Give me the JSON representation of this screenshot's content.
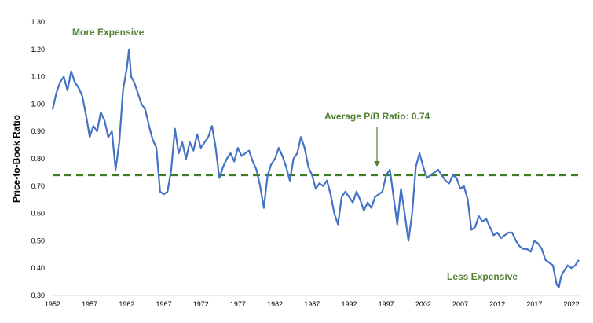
{
  "chart_data": {
    "type": "line",
    "title": "",
    "xlabel": "",
    "ylabel": "Price-to-Book Ratio",
    "xlim": [
      1952,
      2023
    ],
    "ylim": [
      0.3,
      1.3
    ],
    "grid": false,
    "legend": "none",
    "x_ticks": [
      "1952",
      "1957",
      "1962",
      "1967",
      "1972",
      "1977",
      "1982",
      "1987",
      "1992",
      "1997",
      "2002",
      "2007",
      "2012",
      "2017",
      "2022"
    ],
    "y_ticks": [
      "0.30",
      "0.40",
      "0.50",
      "0.60",
      "0.70",
      "0.80",
      "0.90",
      "1.00",
      "1.10",
      "1.20",
      "1.30"
    ],
    "series": [
      {
        "color": "#4472c4",
        "x": [
          1952.0,
          1952.5,
          1953.0,
          1953.5,
          1954.0,
          1954.5,
          1955.0,
          1955.5,
          1956.0,
          1956.5,
          1957.0,
          1957.5,
          1958.0,
          1958.5,
          1959.0,
          1959.5,
          1960.0,
          1960.5,
          1961.0,
          1961.5,
          1962.0,
          1962.3,
          1962.6,
          1963.0,
          1963.5,
          1964.0,
          1964.5,
          1965.0,
          1965.5,
          1966.0,
          1966.5,
          1967.0,
          1967.5,
          1968.0,
          1968.5,
          1969.0,
          1969.5,
          1970.0,
          1970.5,
          1971.0,
          1971.5,
          1972.0,
          1972.5,
          1973.0,
          1973.5,
          1974.0,
          1974.5,
          1975.0,
          1975.5,
          1976.0,
          1976.5,
          1977.0,
          1977.5,
          1978.0,
          1978.5,
          1979.0,
          1979.5,
          1980.0,
          1980.5,
          1981.0,
          1981.5,
          1982.0,
          1982.5,
          1983.0,
          1983.5,
          1984.0,
          1984.5,
          1985.0,
          1985.5,
          1986.0,
          1986.5,
          1987.0,
          1987.5,
          1988.0,
          1988.5,
          1989.0,
          1989.5,
          1990.0,
          1990.5,
          1991.0,
          1991.5,
          1992.0,
          1992.5,
          1993.0,
          1993.5,
          1994.0,
          1994.5,
          1995.0,
          1995.5,
          1996.0,
          1996.5,
          1997.0,
          1997.5,
          1998.0,
          1998.5,
          1999.0,
          1999.5,
          2000.0,
          2000.5,
          2001.0,
          2001.5,
          2002.0,
          2002.5,
          2003.0,
          2003.5,
          2004.0,
          2004.5,
          2005.0,
          2005.5,
          2006.0,
          2006.5,
          2007.0,
          2007.5,
          2008.0,
          2008.5,
          2009.0,
          2009.5,
          2010.0,
          2010.5,
          2011.0,
          2011.5,
          2012.0,
          2012.5,
          2013.0,
          2013.5,
          2014.0,
          2014.5,
          2015.0,
          2015.5,
          2016.0,
          2016.5,
          2017.0,
          2017.5,
          2018.0,
          2018.5,
          2019.0,
          2019.5,
          2020.0,
          2020.3,
          2020.6,
          2021.0,
          2021.5,
          2022.0,
          2022.5,
          2023.0
        ],
        "y": [
          0.98,
          1.04,
          1.08,
          1.1,
          1.05,
          1.12,
          1.08,
          1.06,
          1.03,
          0.96,
          0.88,
          0.92,
          0.9,
          0.97,
          0.94,
          0.88,
          0.9,
          0.76,
          0.86,
          1.05,
          1.13,
          1.2,
          1.1,
          1.08,
          1.04,
          1.0,
          0.98,
          0.92,
          0.87,
          0.84,
          0.68,
          0.67,
          0.68,
          0.76,
          0.91,
          0.82,
          0.86,
          0.8,
          0.86,
          0.83,
          0.89,
          0.84,
          0.86,
          0.88,
          0.92,
          0.84,
          0.73,
          0.77,
          0.8,
          0.82,
          0.79,
          0.84,
          0.81,
          0.82,
          0.83,
          0.79,
          0.76,
          0.7,
          0.62,
          0.74,
          0.78,
          0.8,
          0.84,
          0.81,
          0.77,
          0.72,
          0.8,
          0.82,
          0.88,
          0.84,
          0.77,
          0.74,
          0.69,
          0.71,
          0.7,
          0.72,
          0.67,
          0.6,
          0.56,
          0.66,
          0.68,
          0.66,
          0.64,
          0.68,
          0.65,
          0.61,
          0.64,
          0.62,
          0.66,
          0.67,
          0.68,
          0.74,
          0.76,
          0.66,
          0.56,
          0.69,
          0.6,
          0.5,
          0.6,
          0.77,
          0.82,
          0.77,
          0.73,
          0.74,
          0.75,
          0.76,
          0.74,
          0.72,
          0.71,
          0.74,
          0.73,
          0.69,
          0.7,
          0.65,
          0.54,
          0.55,
          0.59,
          0.57,
          0.58,
          0.55,
          0.52,
          0.53,
          0.51,
          0.52,
          0.53,
          0.53,
          0.5,
          0.48,
          0.47,
          0.47,
          0.46,
          0.5,
          0.49,
          0.47,
          0.43,
          0.42,
          0.41,
          0.34,
          0.33,
          0.37,
          0.39,
          0.41,
          0.4,
          0.41,
          0.43
        ]
      }
    ],
    "average": {
      "value": 0.74,
      "color": "#3a7d22",
      "style": "dashed"
    },
    "annotations": [
      {
        "text": "More Expensive",
        "color": "#548235"
      },
      {
        "text": "Average P/B Ratio: 0.74",
        "color": "#548235"
      },
      {
        "text": "Less Expensive",
        "color": "#548235"
      }
    ]
  }
}
